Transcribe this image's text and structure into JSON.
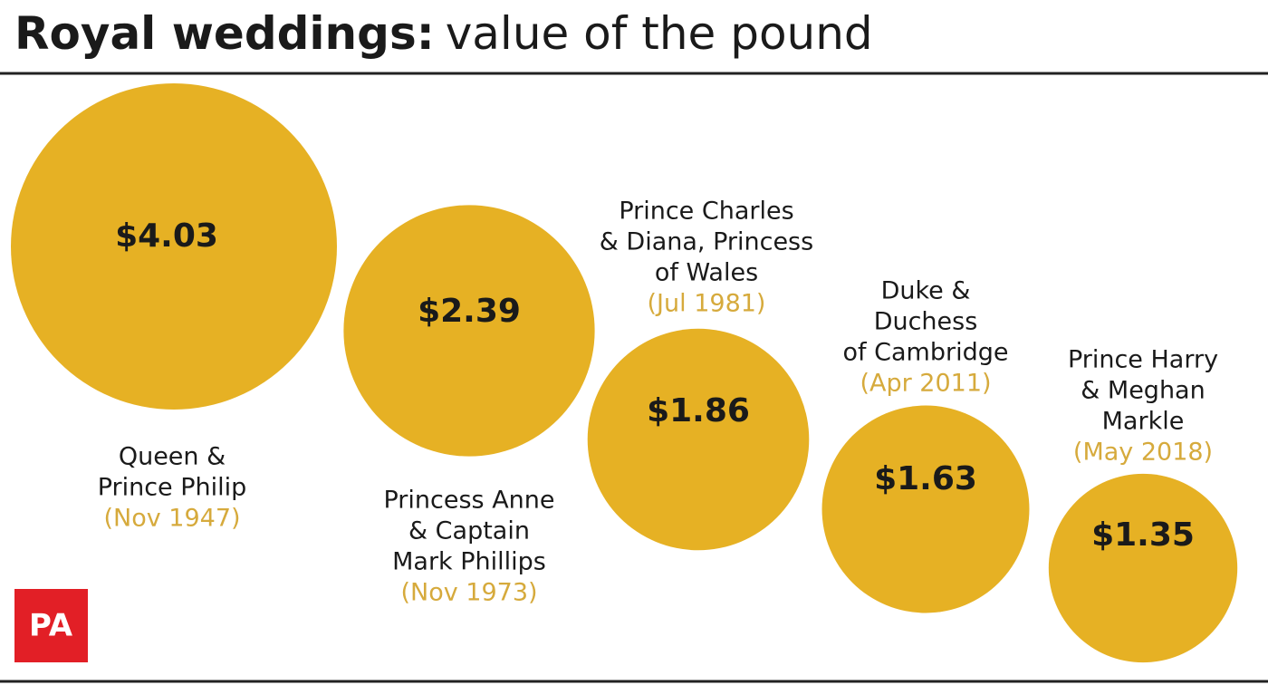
{
  "chart_data": {
    "type": "bubble",
    "title": "Royal weddings:",
    "subtitle": "value of the pound",
    "labels": [
      [
        "Queen &",
        "Prince Philip"
      ],
      [
        "Princess Anne",
        "& Captain",
        "Mark Phillips"
      ],
      [
        "Prince Charles",
        "& Diana, Princess",
        "of Wales"
      ],
      [
        "Duke &",
        "Duchess",
        "of Cambridge"
      ],
      [
        "Prince Harry",
        "& Meghan",
        "Markle"
      ]
    ],
    "dates": [
      "(Nov 1947)",
      "(Nov 1973)",
      "(Jul 1981)",
      "(Apr 2011)",
      "(May 2018)"
    ],
    "values": [
      4.03,
      2.39,
      1.86,
      1.63,
      1.35
    ],
    "value_labels": [
      "$4.03",
      "$2.39",
      "$1.86",
      "$1.63",
      "$1.35"
    ],
    "color": "#e6b124",
    "date_color": "#d6aa3c",
    "logo": "PA"
  }
}
